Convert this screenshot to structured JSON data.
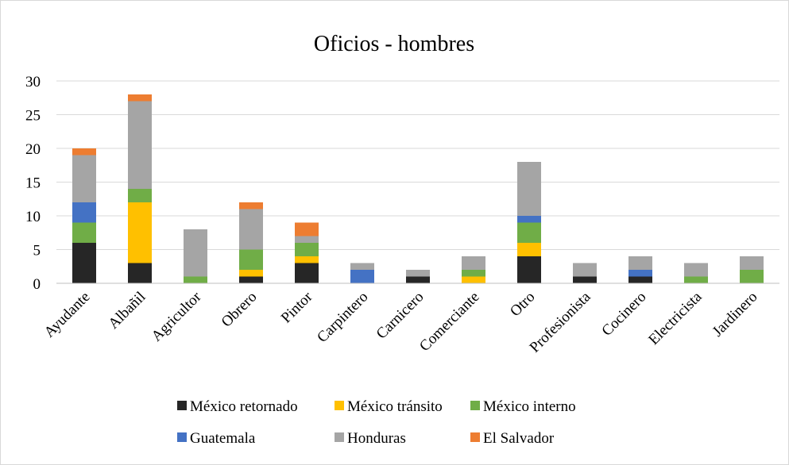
{
  "chart_data": {
    "type": "bar",
    "stacked": true,
    "title": "Oficios - hombres",
    "xlabel": "",
    "ylabel": "",
    "ylim": [
      0,
      30
    ],
    "yticks": [
      0,
      5,
      10,
      15,
      20,
      25,
      30
    ],
    "grid": true,
    "legend_position": "bottom",
    "categories": [
      "Ayudante",
      "Albañil",
      "Agricultor",
      "Obrero",
      "Pintor",
      "Carpintero",
      "Carnicero",
      "Comerciante",
      "Otro",
      "Profesionista",
      "Cocinero",
      "Electricista",
      "Jardinero"
    ],
    "series": [
      {
        "name": "México retornado",
        "color": "#262626",
        "values": [
          6,
          3,
          0,
          1,
          3,
          0,
          1,
          0,
          4,
          1,
          1,
          0,
          0
        ]
      },
      {
        "name": "México tránsito",
        "color": "#ffc000",
        "values": [
          0,
          9,
          0,
          1,
          1,
          0,
          0,
          1,
          2,
          0,
          0,
          0,
          0
        ]
      },
      {
        "name": "México interno",
        "color": "#70ad47",
        "values": [
          3,
          2,
          1,
          3,
          2,
          0,
          0,
          1,
          3,
          0,
          0,
          1,
          2
        ]
      },
      {
        "name": "Guatemala",
        "color": "#4472c4",
        "values": [
          3,
          0,
          0,
          0,
          0,
          2,
          0,
          0,
          1,
          0,
          1,
          0,
          0
        ]
      },
      {
        "name": "Honduras",
        "color": "#a5a5a5",
        "values": [
          7,
          13,
          7,
          6,
          1,
          1,
          1,
          2,
          8,
          2,
          2,
          2,
          2
        ]
      },
      {
        "name": "El Salvador",
        "color": "#ed7d31",
        "values": [
          1,
          1,
          0,
          1,
          2,
          0,
          0,
          0,
          0,
          0,
          0,
          0,
          0
        ]
      }
    ],
    "gridline_color": "#d9d9d9",
    "axis_color": "#bfbfbf"
  }
}
